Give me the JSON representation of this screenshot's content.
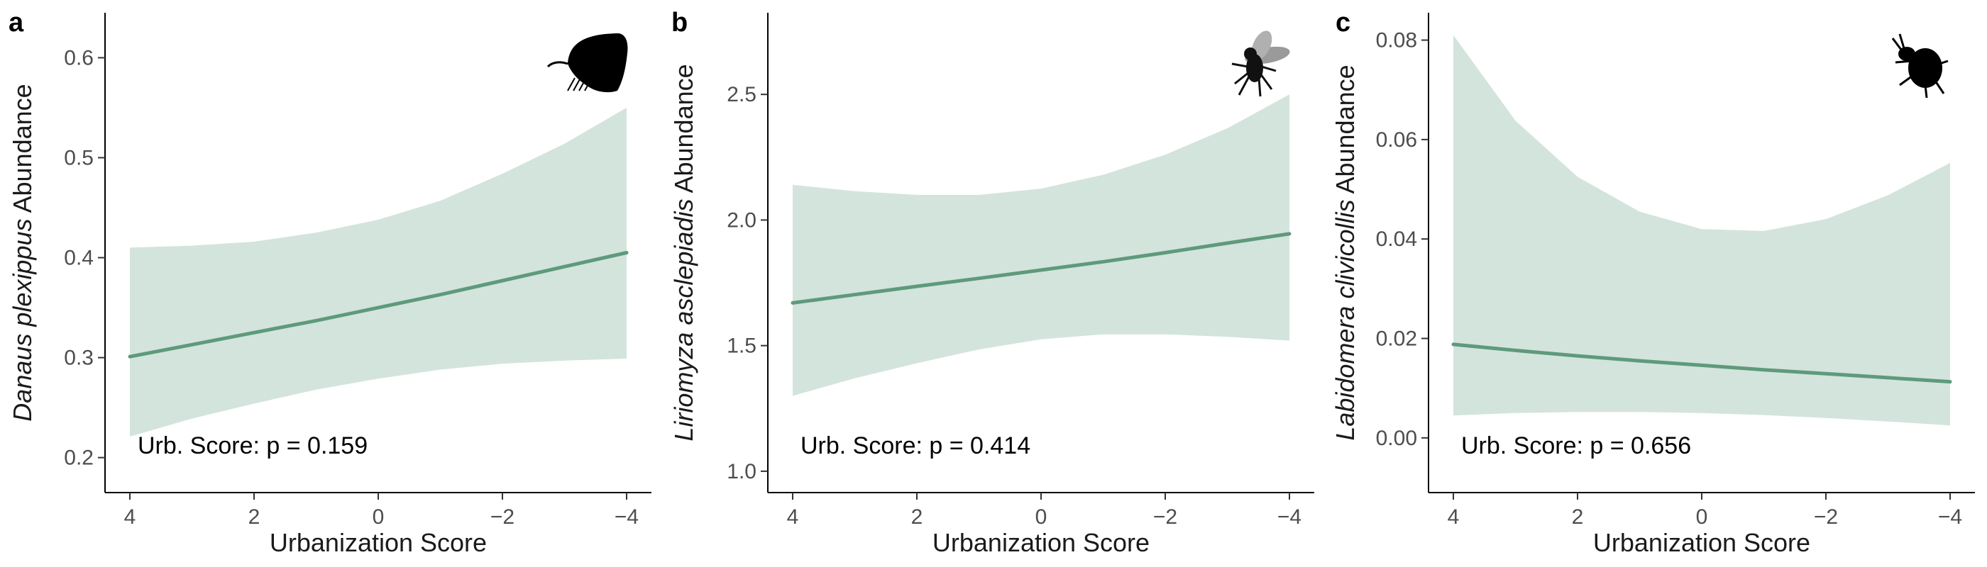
{
  "colors": {
    "line": "#5e9a7c",
    "band": "#d3e4dc",
    "axis": "#000000"
  },
  "chart_data": [
    {
      "panel": "a",
      "type": "line",
      "title": "",
      "xlabel": "Urbanization Score",
      "ylabel_italic": "Danaus plexippus",
      "ylabel_rest": " Abundance",
      "xlim": [
        4.4,
        -4.4
      ],
      "ylim": [
        0.165,
        0.645
      ],
      "x_ticks": [
        4,
        2,
        0,
        -2,
        -4
      ],
      "x_tick_labels": [
        "4",
        "2",
        "0",
        "−2",
        "−4"
      ],
      "y_ticks": [
        0.2,
        0.3,
        0.4,
        0.5,
        0.6
      ],
      "y_tick_labels": [
        "0.2",
        "0.3",
        "0.4",
        "0.5",
        "0.6"
      ],
      "annotation": "Urb. Score: p = 0.159",
      "icon": "butterfly-icon",
      "series": [
        {
          "x": [
            4,
            3,
            2,
            1,
            0,
            -1,
            -2,
            -3,
            -4
          ],
          "fit": [
            0.301,
            0.313,
            0.325,
            0.337,
            0.35,
            0.363,
            0.377,
            0.391,
            0.405
          ],
          "lower": [
            0.221,
            0.239,
            0.254,
            0.268,
            0.279,
            0.288,
            0.294,
            0.297,
            0.299
          ],
          "upper": [
            0.41,
            0.412,
            0.416,
            0.425,
            0.438,
            0.457,
            0.484,
            0.514,
            0.55
          ]
        }
      ]
    },
    {
      "panel": "b",
      "type": "line",
      "title": "",
      "xlabel": "Urbanization Score",
      "ylabel_italic": "Liriomyza asclepiadis",
      "ylabel_rest": " Abundance",
      "xlim": [
        4.4,
        -4.4
      ],
      "ylim": [
        0.915,
        2.825
      ],
      "x_ticks": [
        4,
        2,
        0,
        -2,
        -4
      ],
      "x_tick_labels": [
        "4",
        "2",
        "0",
        "−2",
        "−4"
      ],
      "y_ticks": [
        1.0,
        1.5,
        2.0,
        2.5
      ],
      "y_tick_labels": [
        "1.0",
        "1.5",
        "2.0",
        "2.5"
      ],
      "annotation": "Urb. Score: p = 0.414",
      "icon": "fly-icon",
      "series": [
        {
          "x": [
            4,
            3,
            2,
            1,
            0,
            -1,
            -2,
            -3,
            -4
          ],
          "fit": [
            1.67,
            1.703,
            1.736,
            1.768,
            1.801,
            1.834,
            1.87,
            1.908,
            1.945
          ],
          "lower": [
            1.3,
            1.37,
            1.43,
            1.485,
            1.525,
            1.545,
            1.545,
            1.535,
            1.52
          ],
          "upper": [
            2.14,
            2.115,
            2.1,
            2.1,
            2.125,
            2.18,
            2.26,
            2.365,
            2.5
          ]
        }
      ]
    },
    {
      "panel": "c",
      "type": "line",
      "title": "",
      "xlabel": "Urbanization Score",
      "ylabel_italic": "Labidomera clivicollis",
      "ylabel_rest": " Abundance",
      "xlim": [
        4.4,
        -4.4
      ],
      "ylim": [
        -0.011,
        0.0855
      ],
      "x_ticks": [
        4,
        2,
        0,
        -2,
        -4
      ],
      "x_tick_labels": [
        "4",
        "2",
        "0",
        "−2",
        "−4"
      ],
      "y_ticks": [
        0.0,
        0.02,
        0.04,
        0.06,
        0.08
      ],
      "y_tick_labels": [
        "0.00",
        "0.02",
        "0.04",
        "0.06",
        "0.08"
      ],
      "annotation": "Urb. Score: p = 0.656",
      "icon": "beetle-icon",
      "series": [
        {
          "x": [
            4,
            3,
            2,
            1,
            0,
            -1,
            -2,
            -3,
            -4
          ],
          "fit": [
            0.0188,
            0.0176,
            0.0165,
            0.0155,
            0.0146,
            0.0137,
            0.0129,
            0.0121,
            0.0113
          ],
          "lower": [
            0.0045,
            0.005,
            0.0052,
            0.0052,
            0.005,
            0.0046,
            0.004,
            0.0033,
            0.0025
          ],
          "upper": [
            0.081,
            0.0638,
            0.0525,
            0.0455,
            0.042,
            0.0416,
            0.044,
            0.0488,
            0.0553
          ]
        }
      ]
    }
  ]
}
